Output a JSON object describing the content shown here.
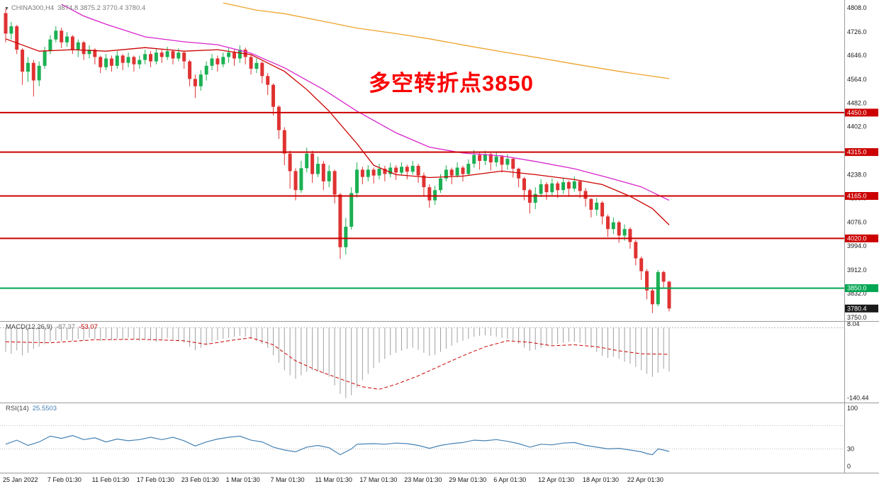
{
  "header": {
    "symbol": "CHINA300,H4",
    "ohlc": "3874.8 3875.2 3770.4 3780.4"
  },
  "annotation": {
    "text": "多空转折点3850",
    "color": "#fb0000"
  },
  "colors": {
    "background": "#ffffff",
    "candle_up": "#1cb053",
    "candle_down": "#e03232",
    "separator": "#9a9a9a",
    "axis_text": "#1a1a1a"
  },
  "chart_data": [
    {
      "panel": "price",
      "type": "candlestick",
      "title": "CHINA300,H4",
      "current_bar": {
        "open": 3874.8,
        "high": 3875.2,
        "low": 3770.4,
        "close": 3780.4
      },
      "ylim": [
        3740,
        4830
      ],
      "y_ticks": [
        4808,
        4726,
        4646,
        4564,
        4482,
        4402,
        4320,
        4238,
        4158,
        4076,
        3994,
        3912,
        3832,
        3750
      ],
      "open_first": 4790,
      "closes": [
        4720,
        4745,
        4665,
        4590,
        4620,
        4560,
        4610,
        4660,
        4700,
        4730,
        4690,
        4710,
        4665,
        4690,
        4650,
        4665,
        4640,
        4605,
        4635,
        4610,
        4645,
        4620,
        4640,
        4615,
        4630,
        4650,
        4625,
        4655,
        4640,
        4660,
        4635,
        4655,
        4625,
        4565,
        4540,
        4580,
        4610,
        4635,
        4615,
        4640,
        4655,
        4635,
        4665,
        4640,
        4600,
        4620,
        4575,
        4545,
        4470,
        4390,
        4310,
        4250,
        4185,
        4260,
        4310,
        4240,
        4275,
        4215,
        4250,
        4170,
        3990,
        4060,
        4175,
        4255,
        4230,
        4255,
        4235,
        4258,
        4240,
        4262,
        4245,
        4265,
        4248,
        4268,
        4235,
        4195,
        4150,
        4185,
        4225,
        4255,
        4235,
        4262,
        4240,
        4275,
        4305,
        4285,
        4308,
        4280,
        4300,
        4272,
        4292,
        4258,
        4225,
        4185,
        4142,
        4172,
        4205,
        4178,
        4208,
        4185,
        4212,
        4190,
        4215,
        4182,
        4155,
        4118,
        4142,
        4095,
        4052,
        4075,
        4030,
        4052,
        4008,
        3952,
        3908,
        3842,
        3795,
        3905,
        3872,
        3780.4
      ],
      "highs": [
        4805,
        4760,
        4750,
        4670,
        4640,
        4630,
        4625,
        4675,
        4715,
        4745,
        4740,
        4725,
        4715,
        4700,
        4695,
        4680,
        4670,
        4645,
        4650,
        4645,
        4660,
        4650,
        4655,
        4645,
        4645,
        4665,
        4660,
        4670,
        4665,
        4675,
        4665,
        4670,
        4660,
        4630,
        4580,
        4595,
        4625,
        4650,
        4645,
        4655,
        4670,
        4665,
        4680,
        4672,
        4650,
        4635,
        4625,
        4585,
        4550,
        4475,
        4400,
        4320,
        4260,
        4285,
        4330,
        4320,
        4300,
        4285,
        4270,
        4255,
        4175,
        4090,
        4195,
        4280,
        4265,
        4270,
        4262,
        4275,
        4268,
        4278,
        4270,
        4280,
        4272,
        4285,
        4275,
        4245,
        4205,
        4200,
        4240,
        4270,
        4262,
        4280,
        4268,
        4290,
        4322,
        4315,
        4320,
        4312,
        4318,
        4305,
        4308,
        4295,
        4262,
        4230,
        4190,
        4195,
        4222,
        4212,
        4225,
        4215,
        4228,
        4218,
        4232,
        4220,
        4192,
        4158,
        4158,
        4148,
        4102,
        4092,
        4080,
        4068,
        4058,
        4015,
        3958,
        3915,
        3848,
        3912,
        3910,
        3875.2
      ],
      "lows": [
        4690,
        4700,
        4650,
        4545,
        4555,
        4505,
        4540,
        4600,
        4650,
        4690,
        4670,
        4675,
        4650,
        4640,
        4630,
        4635,
        4615,
        4585,
        4595,
        4590,
        4600,
        4595,
        4605,
        4590,
        4600,
        4615,
        4605,
        4615,
        4620,
        4630,
        4615,
        4625,
        4600,
        4540,
        4500,
        4525,
        4560,
        4595,
        4590,
        4605,
        4620,
        4610,
        4620,
        4615,
        4580,
        4585,
        4550,
        4510,
        4440,
        4360,
        4270,
        4190,
        4150,
        4175,
        4245,
        4210,
        4230,
        4185,
        4195,
        4140,
        3950,
        3965,
        4050,
        4160,
        4205,
        4215,
        4208,
        4222,
        4215,
        4228,
        4220,
        4235,
        4222,
        4238,
        4210,
        4165,
        4125,
        4135,
        4175,
        4215,
        4205,
        4228,
        4215,
        4235,
        4262,
        4255,
        4270,
        4252,
        4265,
        4245,
        4255,
        4228,
        4195,
        4150,
        4105,
        4120,
        4162,
        4152,
        4168,
        4158,
        4172,
        4162,
        4180,
        4158,
        4128,
        4092,
        4098,
        4068,
        4025,
        4035,
        4005,
        4012,
        3985,
        3928,
        3878,
        3812,
        3765,
        3788,
        3852,
        3770.4
      ],
      "moving_averages": [
        {
          "name": "fast",
          "color": "#cc0000",
          "points": [
            [
              0,
              4702
            ],
            [
              6,
              4660
            ],
            [
              12,
              4665
            ],
            [
              18,
              4660
            ],
            [
              25,
              4672
            ],
            [
              32,
              4660
            ],
            [
              38,
              4665
            ],
            [
              44,
              4648
            ],
            [
              50,
              4591
            ],
            [
              54,
              4529
            ],
            [
              58,
              4455
            ],
            [
              63,
              4344
            ],
            [
              66,
              4270
            ],
            [
              70,
              4238
            ],
            [
              76,
              4228
            ],
            [
              82,
              4233
            ],
            [
              89,
              4250
            ],
            [
              95,
              4238
            ],
            [
              102,
              4221
            ],
            [
              107,
              4204
            ],
            [
              112,
              4164
            ],
            [
              116,
              4122
            ],
            [
              119,
              4066
            ]
          ]
        },
        {
          "name": "mid",
          "color": "#d824cc",
          "points": [
            [
              10,
              4820
            ],
            [
              14,
              4780
            ],
            [
              18,
              4752
            ],
            [
              25,
              4709
            ],
            [
              32,
              4692
            ],
            [
              38,
              4682
            ],
            [
              44,
              4653
            ],
            [
              50,
              4603
            ],
            [
              57,
              4529
            ],
            [
              63,
              4455
            ],
            [
              70,
              4381
            ],
            [
              76,
              4332
            ],
            [
              82,
              4312
            ],
            [
              89,
              4302
            ],
            [
              95,
              4283
            ],
            [
              102,
              4258
            ],
            [
              108,
              4228
            ],
            [
              114,
              4196
            ],
            [
              119,
              4150
            ]
          ]
        },
        {
          "name": "slow",
          "color": "#eda32b",
          "points": [
            [
              39,
              4825
            ],
            [
              45,
              4800
            ],
            [
              50,
              4788
            ],
            [
              57,
              4762
            ],
            [
              63,
              4739
            ],
            [
              70,
              4720
            ],
            [
              76,
              4702
            ],
            [
              83,
              4678
            ],
            [
              89,
              4658
            ],
            [
              96,
              4636
            ],
            [
              102,
              4616
            ],
            [
              110,
              4591
            ],
            [
              119,
              4566
            ]
          ]
        }
      ],
      "horizontal_levels": [
        {
          "price": 4450.0,
          "label": "4450.0",
          "color": "#cc0000"
        },
        {
          "price": 4315.0,
          "label": "4315.0",
          "color": "#cc0000"
        },
        {
          "price": 4165.0,
          "label": "4165.0",
          "color": "#cc0000"
        },
        {
          "price": 4020.0,
          "label": "4020.0",
          "color": "#cc0000"
        },
        {
          "price": 3850.0,
          "label": "3850.0",
          "color": "#00a651"
        }
      ],
      "last_price": {
        "value": 3780.4,
        "label": "3780.4",
        "badge_color": "#1a1a1a"
      }
    },
    {
      "panel": "macd",
      "type": "histogram",
      "label": "MACD(12,26,9)",
      "value_main": "-87.37",
      "value_signal": "-53.07",
      "ylim": [
        -148,
        12
      ],
      "colors": {
        "histogram": "#a0a0a0",
        "signal": "#cc0000",
        "zero_line": "#bcbcbc"
      },
      "histogram": [
        -48,
        -52,
        -45,
        -55,
        -50,
        -42,
        -38,
        -33,
        -28,
        -25,
        -27,
        -24,
        -26,
        -22,
        -25,
        -20,
        -23,
        -26,
        -22,
        -25,
        -21,
        -24,
        -20,
        -23,
        -26,
        -22,
        -25,
        -28,
        -24,
        -21,
        -24,
        -27,
        -30,
        -38,
        -45,
        -40,
        -34,
        -28,
        -25,
        -22,
        -20,
        -18,
        -16,
        -18,
        -22,
        -26,
        -32,
        -40,
        -55,
        -70,
        -85,
        -95,
        -102,
        -95,
        -88,
        -85,
        -88,
        -92,
        -98,
        -115,
        -132,
        -140.44,
        -135,
        -120,
        -105,
        -92,
        -80,
        -70,
        -62,
        -55,
        -50,
        -46,
        -42,
        -40,
        -44,
        -50,
        -56,
        -54,
        -48,
        -42,
        -36,
        -30,
        -26,
        -22,
        -18,
        -16,
        -15,
        -16,
        -18,
        -20,
        -22,
        -26,
        -32,
        -40,
        -46,
        -44,
        -40,
        -36,
        -34,
        -32,
        -30,
        -28,
        -28,
        -30,
        -34,
        -40,
        -48,
        -56,
        -60,
        -58,
        -62,
        -68,
        -72,
        -78,
        -85,
        -92,
        -98,
        -90,
        -82,
        -87.37
      ],
      "signal_points": [
        [
          0,
          -28
        ],
        [
          8,
          -30
        ],
        [
          16,
          -24
        ],
        [
          24,
          -23
        ],
        [
          32,
          -26
        ],
        [
          36,
          -33
        ],
        [
          40,
          -26
        ],
        [
          44,
          -20
        ],
        [
          48,
          -34
        ],
        [
          52,
          -66
        ],
        [
          56,
          -86
        ],
        [
          60,
          -102
        ],
        [
          64,
          -118
        ],
        [
          67,
          -123
        ],
        [
          70,
          -113
        ],
        [
          74,
          -96
        ],
        [
          78,
          -76
        ],
        [
          82,
          -56
        ],
        [
          86,
          -38
        ],
        [
          90,
          -26
        ],
        [
          94,
          -29
        ],
        [
          98,
          -36
        ],
        [
          102,
          -34
        ],
        [
          106,
          -38
        ],
        [
          110,
          -46
        ],
        [
          114,
          -52
        ],
        [
          119,
          -53.07
        ]
      ],
      "scale_labels": [
        {
          "value": 8.04,
          "text": "8.04"
        },
        {
          "value": -140.44,
          "text": "-140.44"
        }
      ]
    },
    {
      "panel": "rsi",
      "type": "line",
      "label": "RSI(14)",
      "value": "25.5503",
      "ylim": [
        0,
        100
      ],
      "color": "#4682b4",
      "levels": [
        70,
        30
      ],
      "points": [
        [
          0,
          38
        ],
        [
          2,
          45
        ],
        [
          4,
          36
        ],
        [
          6,
          42
        ],
        [
          8,
          52
        ],
        [
          10,
          48
        ],
        [
          12,
          53
        ],
        [
          14,
          46
        ],
        [
          16,
          49
        ],
        [
          18,
          42
        ],
        [
          20,
          47
        ],
        [
          22,
          44
        ],
        [
          24,
          46
        ],
        [
          26,
          50
        ],
        [
          28,
          46
        ],
        [
          30,
          50
        ],
        [
          32,
          44
        ],
        [
          34,
          35
        ],
        [
          36,
          42
        ],
        [
          38,
          47
        ],
        [
          40,
          50
        ],
        [
          42,
          52
        ],
        [
          44,
          45
        ],
        [
          46,
          42
        ],
        [
          48,
          33
        ],
        [
          50,
          28
        ],
        [
          52,
          25
        ],
        [
          54,
          33
        ],
        [
          56,
          36
        ],
        [
          58,
          32
        ],
        [
          60,
          20
        ],
        [
          62,
          30
        ],
        [
          63,
          38
        ],
        [
          66,
          39
        ],
        [
          68,
          38
        ],
        [
          70,
          40
        ],
        [
          72,
          39
        ],
        [
          74,
          36
        ],
        [
          76,
          31
        ],
        [
          78,
          36
        ],
        [
          80,
          39
        ],
        [
          82,
          41
        ],
        [
          84,
          45
        ],
        [
          86,
          44
        ],
        [
          88,
          46
        ],
        [
          90,
          43
        ],
        [
          92,
          39
        ],
        [
          94,
          33
        ],
        [
          96,
          38
        ],
        [
          98,
          37
        ],
        [
          100,
          40
        ],
        [
          102,
          41
        ],
        [
          104,
          36
        ],
        [
          106,
          33
        ],
        [
          108,
          30
        ],
        [
          110,
          31
        ],
        [
          112,
          28
        ],
        [
          114,
          25
        ],
        [
          115,
          22
        ],
        [
          116,
          20
        ],
        [
          117,
          30
        ],
        [
          118,
          28
        ],
        [
          119,
          25.55
        ]
      ],
      "scale_labels": [
        {
          "value": 100,
          "text": "100"
        },
        {
          "value": 30,
          "text": "30"
        },
        {
          "value": 0,
          "text": "0"
        }
      ]
    }
  ],
  "x_axis": {
    "bars_per_label": 8,
    "labels": [
      "25 Jan 2022",
      "7 Feb 01:30",
      "11 Feb 01:30",
      "17 Feb 01:30",
      "23 Feb 01:30",
      "1 Mar 01:30",
      "7 Mar 01:30",
      "11 Mar 01:30",
      "17 Mar 01:30",
      "23 Mar 01:30",
      "29 Mar 01:30",
      "6 Apr 01:30",
      "12 Apr 01:30",
      "18 Apr 01:30",
      "22 Apr 01:30"
    ]
  }
}
